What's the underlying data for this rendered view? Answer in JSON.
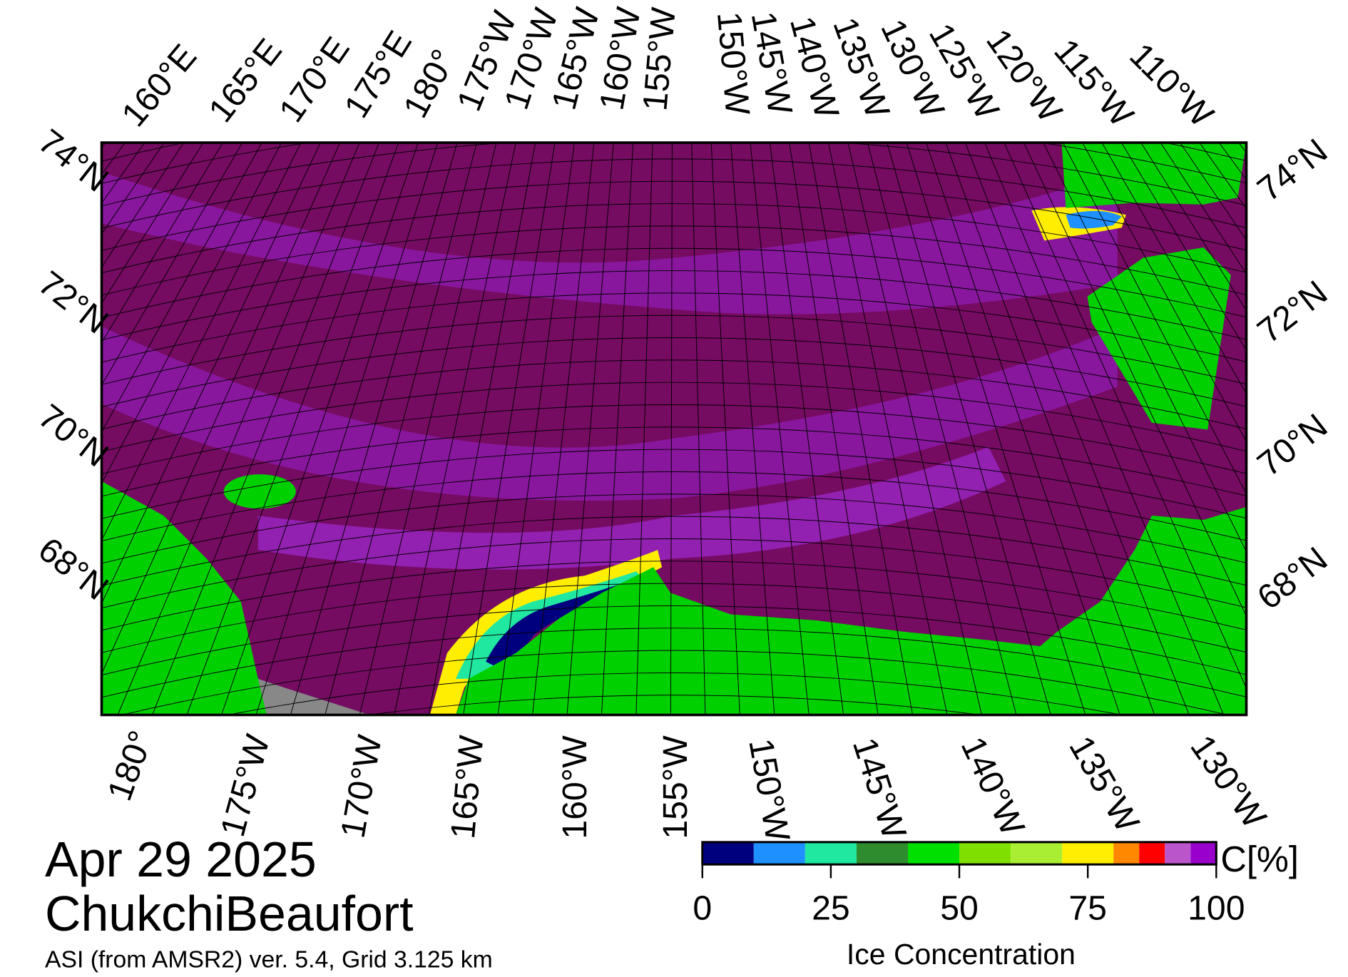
{
  "map": {
    "top_labels": [
      "160°E",
      "165°E",
      "170°E",
      "175°E",
      "180°",
      "175°W",
      "170°W",
      "165°W",
      "160°W",
      "155°W",
      "150°W",
      "145°W",
      "140°W",
      "135°W",
      "130°W",
      "125°W",
      "120°W",
      "115°W",
      "110°W"
    ],
    "bottom_labels": [
      "180°",
      "175°W",
      "170°W",
      "165°W",
      "160°W",
      "155°W",
      "150°W",
      "145°W",
      "140°W",
      "135°W",
      "130°W"
    ],
    "left_labels": [
      "74°N",
      "72°N",
      "70°N",
      "68°N"
    ],
    "right_labels": [
      "74°N",
      "72°N",
      "70°N",
      "68°N"
    ]
  },
  "info": {
    "date": "Apr 29 2025",
    "region": "ChukchiBeaufort",
    "source": "ASI (from AMSR2) ver. 5.4,  Grid 3.125 km"
  },
  "colorbar": {
    "bins": [
      0,
      10,
      20,
      30,
      40,
      50,
      60,
      70,
      80,
      85,
      90,
      95,
      100
    ],
    "colors": [
      "#00007f",
      "#1e90ff",
      "#20e8a0",
      "#2e8b2e",
      "#00e000",
      "#7fe000",
      "#aaee33",
      "#ffee00",
      "#ff8800",
      "#ff0000",
      "#bb55cc",
      "#9900cc"
    ],
    "ticks": [
      0,
      25,
      50,
      75,
      100
    ],
    "label": "Ice Concentration",
    "unit": "C[%]"
  }
}
